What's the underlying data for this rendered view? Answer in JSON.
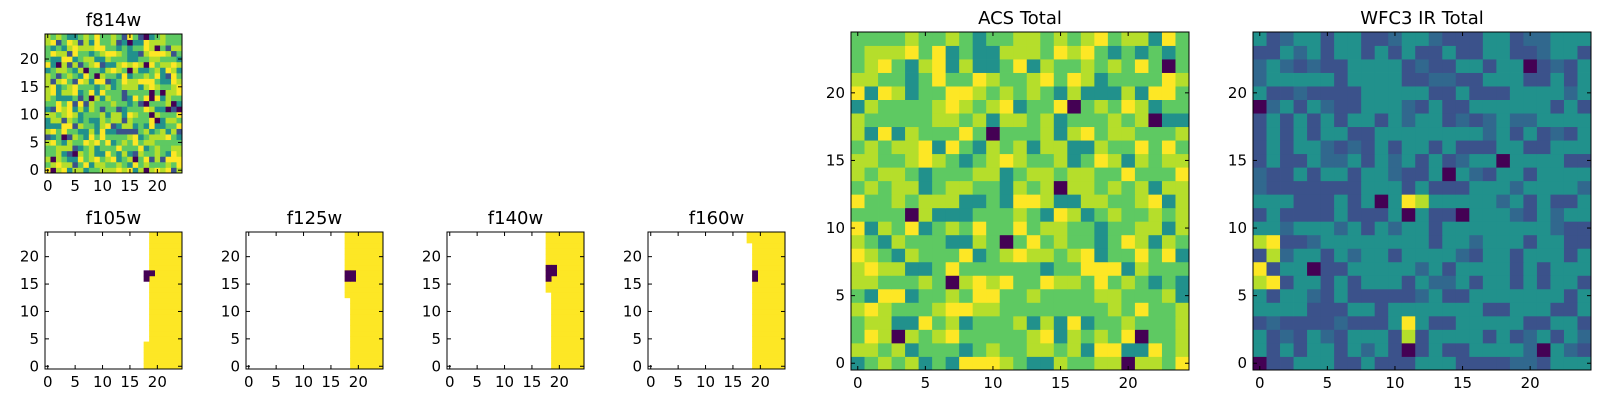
{
  "colors": {
    "viridis": [
      "#440154",
      "#3b528b",
      "#21918c",
      "#5ec962",
      "#fde725"
    ],
    "background": "#ffffff"
  },
  "chart_data": [
    {
      "id": "f814w",
      "type": "heatmap",
      "title": "f814w",
      "xlim": [
        -0.5,
        24.5
      ],
      "ylim": [
        -0.5,
        24.5
      ],
      "xticks": [
        0,
        5,
        10,
        15,
        20
      ],
      "yticks": [
        0,
        5,
        10,
        15,
        20
      ],
      "grid": false,
      "pattern": "noise"
    },
    {
      "id": "f105w",
      "type": "heatmap",
      "title": "f105w",
      "xlim": [
        -0.5,
        24.5
      ],
      "ylim": [
        -0.5,
        24.5
      ],
      "xticks": [
        0,
        5,
        10,
        15,
        20
      ],
      "yticks": [
        0,
        5,
        10,
        15,
        20
      ],
      "grid": false,
      "pattern": "mask",
      "filled_columns": {
        "start_x": [
          18,
          18,
          18,
          18,
          18,
          19,
          19,
          19,
          19,
          19,
          19,
          19,
          19,
          19,
          19,
          19,
          19,
          19,
          19,
          19,
          19,
          19,
          19,
          19,
          19
        ]
      },
      "dark_pixels": [
        [
          18,
          17
        ],
        [
          19,
          17
        ],
        [
          18,
          16
        ]
      ]
    },
    {
      "id": "f125w",
      "type": "heatmap",
      "title": "f125w",
      "xlim": [
        -0.5,
        24.5
      ],
      "ylim": [
        -0.5,
        24.5
      ],
      "xticks": [
        0,
        5,
        10,
        15,
        20
      ],
      "yticks": [
        0,
        5,
        10,
        15,
        20
      ],
      "grid": false,
      "pattern": "mask",
      "filled_columns": {
        "start_x": [
          19,
          19,
          19,
          19,
          19,
          19,
          19,
          19,
          19,
          19,
          19,
          19,
          19,
          18,
          18,
          18,
          18,
          18,
          18,
          18,
          18,
          18,
          18,
          18,
          18
        ]
      },
      "dark_pixels": [
        [
          18,
          17
        ],
        [
          19,
          17
        ],
        [
          18,
          16
        ],
        [
          19,
          16
        ]
      ]
    },
    {
      "id": "f140w",
      "type": "heatmap",
      "title": "f140w",
      "xlim": [
        -0.5,
        24.5
      ],
      "ylim": [
        -0.5,
        24.5
      ],
      "xticks": [
        0,
        5,
        10,
        15,
        20
      ],
      "yticks": [
        0,
        5,
        10,
        15,
        20
      ],
      "grid": false,
      "pattern": "mask",
      "filled_columns": {
        "start_x": [
          19,
          19,
          19,
          19,
          19,
          19,
          19,
          19,
          19,
          19,
          19,
          19,
          19,
          19,
          18,
          18,
          18,
          18,
          18,
          18,
          18,
          18,
          18,
          18,
          18
        ]
      },
      "dark_pixels": [
        [
          18,
          18
        ],
        [
          19,
          18
        ],
        [
          18,
          17
        ],
        [
          19,
          17
        ],
        [
          18,
          16
        ]
      ]
    },
    {
      "id": "f160w",
      "type": "heatmap",
      "title": "f160w",
      "xlim": [
        -0.5,
        24.5
      ],
      "ylim": [
        -0.5,
        24.5
      ],
      "xticks": [
        0,
        5,
        10,
        15,
        20
      ],
      "yticks": [
        0,
        5,
        10,
        15,
        20
      ],
      "grid": false,
      "pattern": "mask",
      "filled_columns": {
        "start_x": [
          19,
          19,
          19,
          19,
          19,
          19,
          19,
          19,
          19,
          19,
          19,
          19,
          19,
          19,
          19,
          19,
          19,
          19,
          19,
          19,
          19,
          19,
          19,
          18,
          18
        ]
      },
      "dark_pixels": [
        [
          19,
          17
        ],
        [
          19,
          16
        ]
      ]
    },
    {
      "id": "acs_total",
      "type": "heatmap",
      "title": "ACS Total",
      "xlim": [
        -0.5,
        24.5
      ],
      "ylim": [
        -0.5,
        24.5
      ],
      "xticks": [
        0,
        5,
        10,
        15,
        20
      ],
      "yticks": [
        0,
        5,
        10,
        15,
        20
      ],
      "grid": false,
      "pattern": "noise",
      "dark_pixels": [
        [
          23,
          22
        ],
        [
          16,
          19
        ],
        [
          22,
          18
        ],
        [
          10,
          17
        ],
        [
          15,
          13
        ],
        [
          4,
          11
        ],
        [
          11,
          9
        ],
        [
          7,
          6
        ],
        [
          3,
          2
        ],
        [
          21,
          2
        ],
        [
          20,
          0
        ]
      ]
    },
    {
      "id": "wfc3_ir_total",
      "type": "heatmap",
      "title": "WFC3 IR Total",
      "xlim": [
        -0.5,
        24.5
      ],
      "ylim": [
        -0.5,
        24.5
      ],
      "xticks": [
        0,
        5,
        10,
        15,
        20
      ],
      "yticks": [
        0,
        5,
        10,
        15,
        20
      ],
      "grid": false,
      "pattern": "noise",
      "dark_pixels": [
        [
          20,
          22
        ],
        [
          0,
          19
        ],
        [
          18,
          15
        ],
        [
          14,
          14
        ],
        [
          9,
          12
        ],
        [
          15,
          11
        ],
        [
          11,
          11
        ],
        [
          4,
          7
        ],
        [
          21,
          1
        ],
        [
          11,
          1
        ],
        [
          0,
          0
        ]
      ],
      "bright_pixels": [
        [
          11,
          12
        ],
        [
          12,
          12
        ],
        [
          0,
          9
        ],
        [
          1,
          9
        ],
        [
          1,
          8
        ],
        [
          0,
          7
        ],
        [
          1,
          6
        ],
        [
          0,
          6
        ],
        [
          11,
          3
        ],
        [
          11,
          2
        ]
      ]
    }
  ]
}
